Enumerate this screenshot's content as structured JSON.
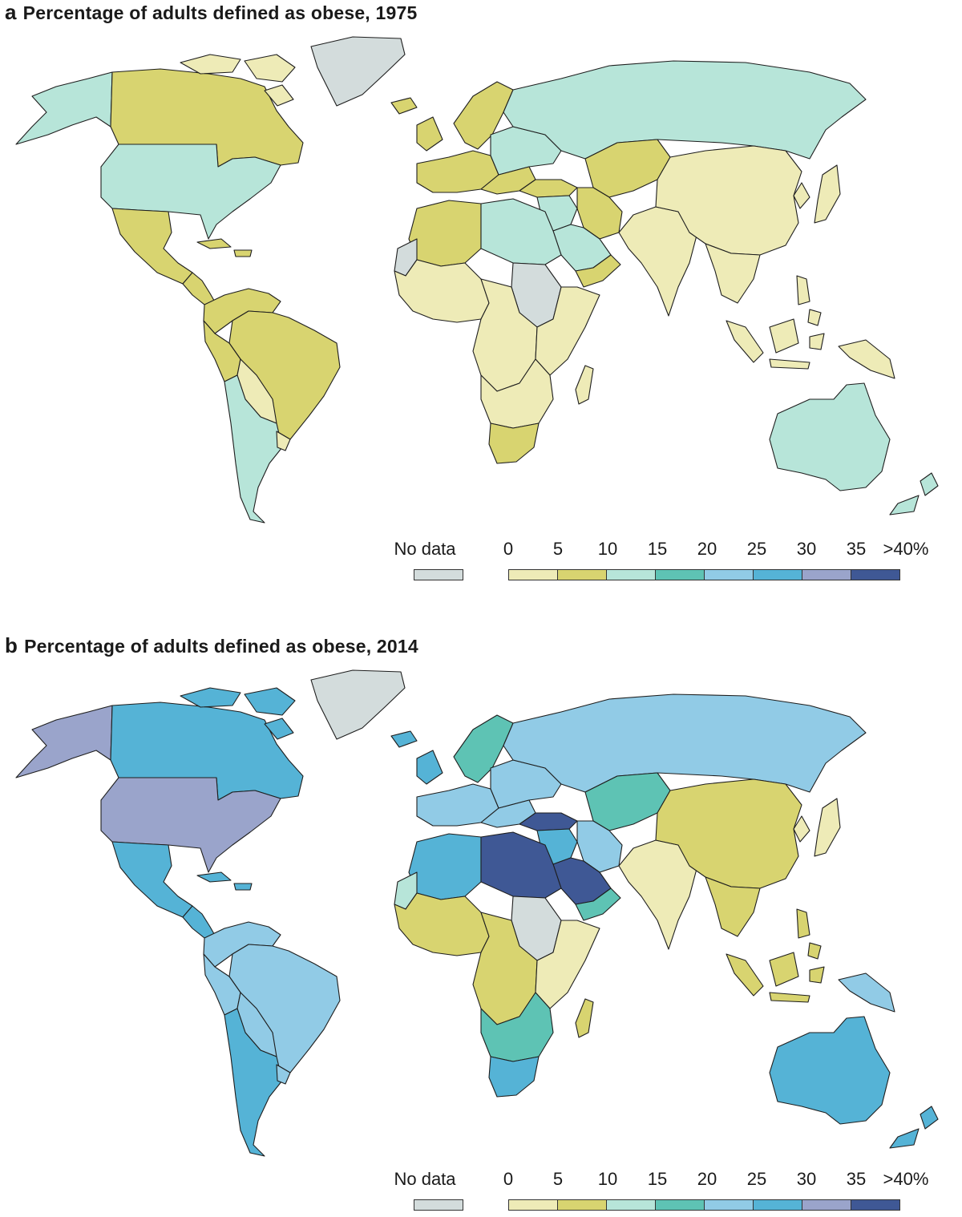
{
  "colors": {
    "no_data": "#d3dcdc",
    "bins": [
      "#eeebb7",
      "#d8d470",
      "#b7e5d9",
      "#5ec3b4",
      "#91cbe6",
      "#55b3d6",
      "#9aa4cb",
      "#3f5895"
    ],
    "ocean": "#ffffff",
    "border": "#1e1e1e"
  },
  "legend": {
    "no_data_label": "No data",
    "ticks": [
      "0",
      "5",
      "10",
      "15",
      "20",
      "25",
      "30",
      "35",
      ">40%"
    ]
  },
  "panels": [
    {
      "letter": "a",
      "title": "Percentage of adults defined as obese, 1975",
      "regions": {
        "alaska": 2,
        "canada": 1,
        "arctic_islands": 0,
        "greenland": -1,
        "usa": 2,
        "mexico": 1,
        "central_america": 1,
        "caribbean": 1,
        "south_america_north": 1,
        "brazil": 1,
        "andes": 1,
        "bolivia_paraguay": 0,
        "argentina_chile": 2,
        "uruguay": 0,
        "western_europe": 1,
        "scandinavia": 1,
        "iceland": 1,
        "uk": 1,
        "eastern_europe": 2,
        "balkans": 1,
        "russia": 2,
        "central_asia": 1,
        "turkey": 1,
        "middle_east": 2,
        "iran": 1,
        "arabia": 2,
        "yemen_oman": 1,
        "north_africa_west": 1,
        "libya_egypt": 2,
        "western_sahara": -1,
        "west_africa": 0,
        "sudan": -1,
        "central_africa": 0,
        "east_africa": 0,
        "southern_africa": 0,
        "south_africa": 1,
        "madagascar": 0,
        "south_asia": 0,
        "china_mongolia": 0,
        "japan_korea": 0,
        "southeast_asia": 0,
        "indonesia": 0,
        "philippines": 0,
        "png": 0,
        "australia": 2,
        "new_zealand": 2
      }
    },
    {
      "letter": "b",
      "title": "Percentage of adults defined as obese, 2014",
      "regions": {
        "alaska": 6,
        "canada": 5,
        "arctic_islands": 5,
        "greenland": -1,
        "usa": 6,
        "mexico": 5,
        "central_america": 5,
        "caribbean": 5,
        "south_america_north": 4,
        "brazil": 4,
        "andes": 4,
        "bolivia_paraguay": 4,
        "argentina_chile": 5,
        "uruguay": 4,
        "western_europe": 4,
        "scandinavia": 3,
        "iceland": 5,
        "uk": 5,
        "eastern_europe": 4,
        "balkans": 4,
        "russia": 4,
        "central_asia": 3,
        "turkey": 7,
        "middle_east": 5,
        "iran": 4,
        "arabia": 7,
        "yemen_oman": 3,
        "north_africa_west": 5,
        "libya_egypt": 7,
        "western_sahara": 2,
        "west_africa": 1,
        "sudan": -1,
        "central_africa": 1,
        "east_africa": 0,
        "southern_africa": 3,
        "south_africa": 5,
        "madagascar": 1,
        "south_asia": 0,
        "china_mongolia": 1,
        "japan_korea": 0,
        "southeast_asia": 1,
        "indonesia": 1,
        "philippines": 1,
        "png": 4,
        "australia": 5,
        "new_zealand": 5
      }
    }
  ]
}
